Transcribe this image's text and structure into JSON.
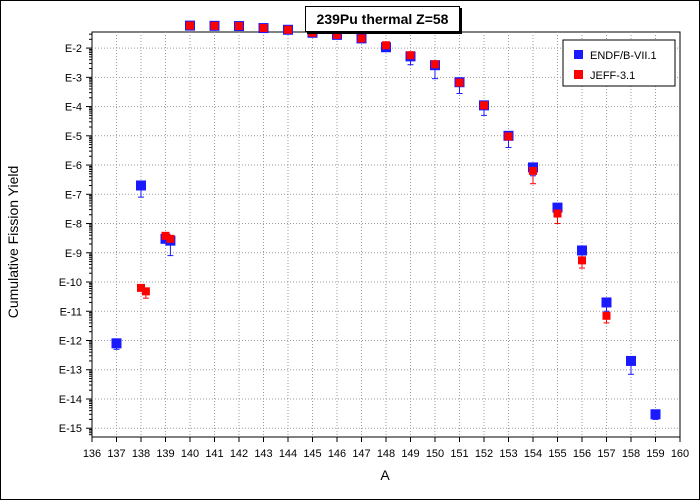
{
  "chart_data": {
    "type": "scatter",
    "title": "239Pu thermal Z=58",
    "xlabel": "A",
    "ylabel": "Cumulative Fission Yield",
    "xlim": [
      136,
      160
    ],
    "xticks": [
      "136",
      "137",
      "138",
      "139",
      "140",
      "141",
      "142",
      "143",
      "144",
      "145",
      "146",
      "147",
      "148",
      "149",
      "150",
      "151",
      "152",
      "153",
      "154",
      "155",
      "156",
      "157",
      "158",
      "159",
      "160"
    ],
    "yscale": "log",
    "ylim_exponent": [
      -15.3,
      -1.45
    ],
    "yticks": [
      "E-2",
      "E-3",
      "E-4",
      "E-5",
      "E-6",
      "E-7",
      "E-8",
      "E-9",
      "E-10",
      "E-11",
      "E-12",
      "E-13",
      "E-14",
      "E-15"
    ],
    "grid": true,
    "legend_position": "top-right",
    "series": [
      {
        "name": "ENDF/B-VII.1",
        "color": "#1a1aff",
        "points": [
          {
            "x": 137,
            "y": 8e-13,
            "yerr_low": 3e-13
          },
          {
            "x": 138,
            "y": 2e-07,
            "yerr_low": 1.2e-07
          },
          {
            "x": 139,
            "y": 3e-09
          },
          {
            "x": 139.2,
            "y": 2.6e-09,
            "yerr_low": 1.8e-09
          },
          {
            "x": 140,
            "y": 0.0587
          },
          {
            "x": 141,
            "y": 0.0577
          },
          {
            "x": 142,
            "y": 0.0567
          },
          {
            "x": 143,
            "y": 0.0484
          },
          {
            "x": 144,
            "y": 0.0423
          },
          {
            "x": 145,
            "y": 0.0334
          },
          {
            "x": 146,
            "y": 0.0283
          },
          {
            "x": 147,
            "y": 0.0214
          },
          {
            "x": 148,
            "y": 0.0107,
            "yerr_low": 0.003
          },
          {
            "x": 149,
            "y": 0.0052,
            "yerr_low": 0.0025
          },
          {
            "x": 150,
            "y": 0.0026,
            "yerr_low": 0.0017
          },
          {
            "x": 151,
            "y": 0.00068,
            "yerr_low": 0.0004
          },
          {
            "x": 152,
            "y": 0.00011,
            "yerr_low": 6e-05
          },
          {
            "x": 153,
            "y": 1e-05,
            "yerr_low": 6e-06
          },
          {
            "x": 154,
            "y": 8.3e-07,
            "yerr_low": 4e-07
          },
          {
            "x": 155,
            "y": 3.5e-08,
            "yerr_low": 1.5e-08
          },
          {
            "x": 156,
            "y": 1.2e-09,
            "yerr_low": 5e-10
          },
          {
            "x": 157,
            "y": 2e-11,
            "yerr_low": 1e-11
          },
          {
            "x": 158,
            "y": 2e-13,
            "yerr_low": 1.3e-13
          },
          {
            "x": 159,
            "y": 3e-15,
            "yerr_low": 1e-15
          }
        ]
      },
      {
        "name": "JEFF-3.1",
        "color": "#ff0000",
        "points": [
          {
            "x": 138,
            "y": 6.3e-11
          },
          {
            "x": 138.2,
            "y": 4.8e-11,
            "yerr_low": 2e-11
          },
          {
            "x": 139,
            "y": 3.8e-09
          },
          {
            "x": 139.2,
            "y": 3e-09
          },
          {
            "x": 140,
            "y": 0.0587
          },
          {
            "x": 141,
            "y": 0.0577
          },
          {
            "x": 142,
            "y": 0.0567
          },
          {
            "x": 143,
            "y": 0.0484
          },
          {
            "x": 144,
            "y": 0.0423
          },
          {
            "x": 145,
            "y": 0.0334
          },
          {
            "x": 146,
            "y": 0.0283
          },
          {
            "x": 147,
            "y": 0.0214
          },
          {
            "x": 148,
            "y": 0.0125
          },
          {
            "x": 149,
            "y": 0.0057
          },
          {
            "x": 150,
            "y": 0.0028
          },
          {
            "x": 151,
            "y": 0.00066
          },
          {
            "x": 152,
            "y": 0.00011
          },
          {
            "x": 153,
            "y": 9.5e-06
          },
          {
            "x": 154,
            "y": 6.3e-07,
            "yerr_low": 4e-07
          },
          {
            "x": 155,
            "y": 2.2e-08,
            "yerr_low": 1.2e-08
          },
          {
            "x": 156,
            "y": 5.5e-10,
            "yerr_low": 2.5e-10
          },
          {
            "x": 157,
            "y": 7e-12,
            "yerr_low": 3e-12
          }
        ]
      }
    ]
  }
}
